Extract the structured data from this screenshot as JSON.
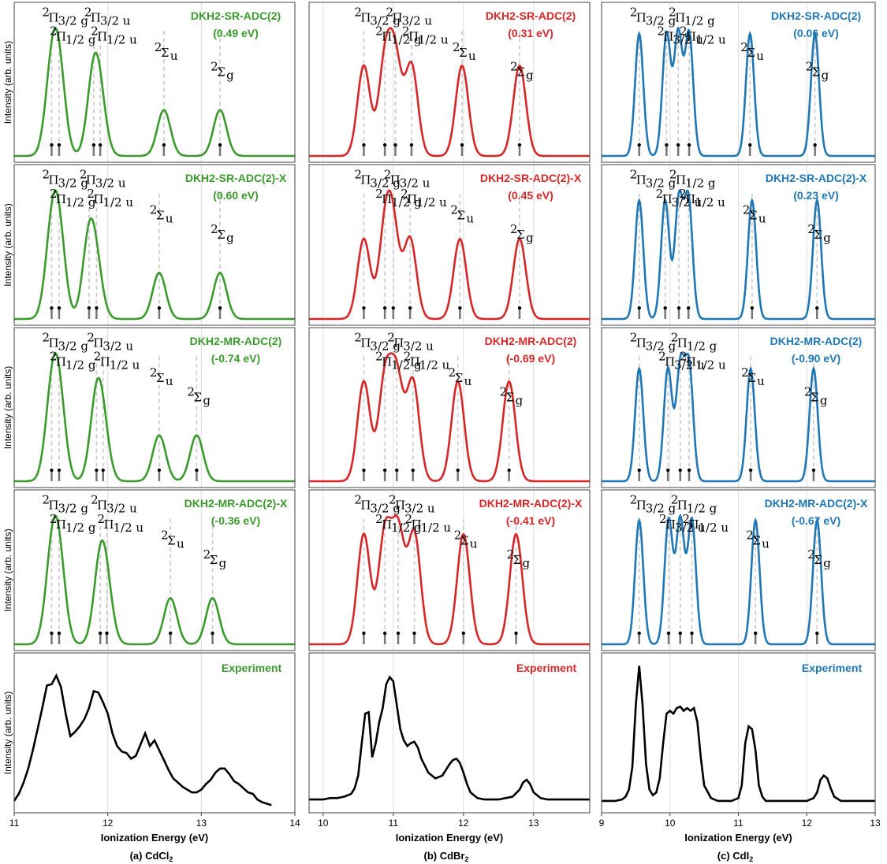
{
  "colors": {
    "cdcl2": "#3a9b2c",
    "cdbr2": "#d62728",
    "cdi2": "#1f77b4",
    "experiment": "#000000"
  },
  "chart_data": [
    {
      "type": "line",
      "panel": "a",
      "molecule": "CdCl2",
      "caption": "(a) CdCl",
      "caption_sub": "2",
      "xlabel": "Ionization Energy (eV)",
      "ylabel": "Intensity (arb. units)",
      "xlim": [
        11,
        14
      ],
      "xticks": [
        "11",
        "12",
        "13",
        "14"
      ],
      "methods": [
        {
          "name": "DKH2-SR-ADC(2)",
          "shift": "(0.49 eV)",
          "peaks": [
            11.4,
            11.48,
            11.85,
            11.92,
            12.6,
            13.2
          ],
          "heights": [
            1.0,
            1.0,
            1.0,
            0.53,
            0.61,
            0.61
          ],
          "labels": [
            {
              "base": "Π",
              "sup": "2",
              "sub": "3/2 g"
            },
            {
              "base": "Π",
              "sup": "2",
              "sub": "1/2 g"
            },
            {
              "base": "Π",
              "sup": "2",
              "sub": "3/2 u"
            },
            {
              "base": "Π",
              "sup": "2",
              "sub": "1/2 u"
            },
            {
              "base": "Σ",
              "sup": "2",
              "sub": "u"
            },
            {
              "base": "Σ",
              "sup": "2",
              "sub": "g"
            }
          ]
        },
        {
          "name": "DKH2-SR-ADC(2)-X",
          "shift": "(0.60 eV)",
          "peaks": [
            11.4,
            11.48,
            11.8,
            11.88,
            12.55,
            13.2
          ],
          "heights": [
            1.0,
            1.0,
            1.0,
            0.53,
            0.61,
            0.61
          ],
          "labels": [
            {
              "base": "Π",
              "sup": "2",
              "sub": "3/2 g"
            },
            {
              "base": "Π",
              "sup": "2",
              "sub": "1/2 g"
            },
            {
              "base": "Π",
              "sup": "2",
              "sub": "3/2 u"
            },
            {
              "base": "Π",
              "sup": "2",
              "sub": "1/2 u"
            },
            {
              "base": "Σ",
              "sup": "2",
              "sub": "u"
            },
            {
              "base": "Σ",
              "sup": "2",
              "sub": "g"
            }
          ]
        },
        {
          "name": "DKH2-MR-ADC(2)",
          "shift": "(-0.74 eV)",
          "peaks": [
            11.4,
            11.48,
            11.88,
            11.95,
            12.55,
            12.95
          ],
          "heights": [
            1.0,
            1.0,
            1.0,
            0.53,
            0.61,
            0.61
          ],
          "labels": [
            {
              "base": "Π",
              "sup": "2",
              "sub": "3/2 g"
            },
            {
              "base": "Π",
              "sup": "2",
              "sub": "1/2 g"
            },
            {
              "base": "Π",
              "sup": "2",
              "sub": "3/2 u"
            },
            {
              "base": "Π",
              "sup": "2",
              "sub": "1/2 u"
            },
            {
              "base": "Σ",
              "sup": "2",
              "sub": "u"
            },
            {
              "base": "Σ",
              "sup": "2",
              "sub": "g"
            }
          ]
        },
        {
          "name": "DKH2-MR-ADC(2)-X",
          "shift": "(-0.36 eV)",
          "peaks": [
            11.4,
            11.48,
            11.92,
            11.99,
            12.67,
            13.12
          ],
          "heights": [
            1.0,
            1.0,
            1.0,
            0.53,
            0.61,
            0.61
          ],
          "labels": [
            {
              "base": "Π",
              "sup": "2",
              "sub": "3/2 g"
            },
            {
              "base": "Π",
              "sup": "2",
              "sub": "1/2 g"
            },
            {
              "base": "Π",
              "sup": "2",
              "sub": "3/2 u"
            },
            {
              "base": "Π",
              "sup": "2",
              "sub": "1/2 u"
            },
            {
              "base": "Σ",
              "sup": "2",
              "sub": "u"
            },
            {
              "base": "Σ",
              "sup": "2",
              "sub": "g"
            }
          ]
        }
      ],
      "experiment": {
        "name": "Experiment",
        "x": [
          11.0,
          11.05,
          11.1,
          11.15,
          11.2,
          11.25,
          11.3,
          11.35,
          11.4,
          11.45,
          11.5,
          11.55,
          11.6,
          11.65,
          11.7,
          11.75,
          11.8,
          11.85,
          11.9,
          11.95,
          12.0,
          12.05,
          12.1,
          12.15,
          12.2,
          12.25,
          12.3,
          12.35,
          12.4,
          12.45,
          12.5,
          12.55,
          12.6,
          12.65,
          12.7,
          12.75,
          12.8,
          12.85,
          12.9,
          12.95,
          13.0,
          13.05,
          13.1,
          13.15,
          13.2,
          13.25,
          13.3,
          13.35,
          13.4,
          13.45,
          13.5,
          13.55,
          13.6,
          13.65,
          13.7,
          13.75
        ],
        "y": [
          0.04,
          0.09,
          0.17,
          0.27,
          0.4,
          0.55,
          0.7,
          0.86,
          0.87,
          0.93,
          0.85,
          0.66,
          0.5,
          0.53,
          0.57,
          0.62,
          0.7,
          0.82,
          0.81,
          0.74,
          0.66,
          0.52,
          0.43,
          0.39,
          0.38,
          0.34,
          0.36,
          0.44,
          0.52,
          0.43,
          0.47,
          0.4,
          0.33,
          0.26,
          0.2,
          0.17,
          0.14,
          0.12,
          0.1,
          0.1,
          0.12,
          0.16,
          0.19,
          0.24,
          0.27,
          0.27,
          0.23,
          0.18,
          0.16,
          0.13,
          0.1,
          0.09,
          0.05,
          0.03,
          0.02,
          0.01
        ]
      }
    },
    {
      "type": "line",
      "panel": "b",
      "molecule": "CdBr2",
      "caption": "(b) CdBr",
      "caption_sub": "2",
      "xlabel": "Ionization Energy (eV)",
      "ylabel": "",
      "xlim": [
        9.8,
        13.8
      ],
      "xticks": [
        "10",
        "11",
        "12",
        "13"
      ],
      "methods": [
        {
          "name": "DKH2-SR-ADC(2)",
          "shift": "(0.31 eV)",
          "peaks": [
            10.58,
            10.88,
            11.03,
            11.26,
            11.98,
            12.8
          ],
          "heights": [
            0.6,
            0.6,
            0.6,
            0.6,
            0.6,
            0.6
          ],
          "labels": [
            {
              "base": "Π",
              "sup": "2",
              "sub": "3/2 g"
            },
            {
              "base": "Π",
              "sup": "2",
              "sub": "1/2 g"
            },
            {
              "base": "Π",
              "sup": "2",
              "sub": "3/2 u"
            },
            {
              "base": "Π",
              "sup": "2",
              "sub": "1/2 u"
            },
            {
              "base": "Σ",
              "sup": "2",
              "sub": "u"
            },
            {
              "base": "Σ",
              "sup": "2",
              "sub": "g"
            }
          ]
        },
        {
          "name": "DKH2-SR-ADC(2)-X",
          "shift": "(0.45 eV)",
          "peaks": [
            10.58,
            10.88,
            11.0,
            11.24,
            11.95,
            12.8
          ],
          "heights": [
            0.6,
            0.6,
            0.6,
            0.6,
            0.6,
            0.6
          ],
          "labels": [
            {
              "base": "Π",
              "sup": "2",
              "sub": "3/2 g"
            },
            {
              "base": "Π",
              "sup": "2",
              "sub": "1/2 g"
            },
            {
              "base": "Π",
              "sup": "2",
              "sub": "3/2 u"
            },
            {
              "base": "Π",
              "sup": "2",
              "sub": "1/2 u"
            },
            {
              "base": "Σ",
              "sup": "2",
              "sub": "u"
            },
            {
              "base": "Σ",
              "sup": "2",
              "sub": "g"
            }
          ]
        },
        {
          "name": "DKH2-MR-ADC(2)",
          "shift": "(-0.69 eV)",
          "peaks": [
            10.58,
            10.88,
            11.05,
            11.28,
            11.92,
            12.65
          ],
          "heights": [
            0.6,
            0.6,
            0.6,
            0.6,
            0.6,
            0.6
          ],
          "labels": [
            {
              "base": "Π",
              "sup": "2",
              "sub": "3/2 g"
            },
            {
              "base": "Π",
              "sup": "2",
              "sub": "1/2 g"
            },
            {
              "base": "Π",
              "sup": "2",
              "sub": "3/2 u"
            },
            {
              "base": "Π",
              "sup": "2",
              "sub": "1/2 u"
            },
            {
              "base": "Σ",
              "sup": "2",
              "sub": "u"
            },
            {
              "base": "Σ",
              "sup": "2",
              "sub": "g"
            }
          ]
        },
        {
          "name": "DKH2-MR-ADC(2)-X",
          "shift": "(-0.41 eV)",
          "peaks": [
            10.58,
            10.88,
            11.07,
            11.3,
            12.0,
            12.75
          ],
          "heights": [
            0.6,
            0.6,
            0.6,
            0.6,
            0.6,
            0.6
          ],
          "labels": [
            {
              "base": "Π",
              "sup": "2",
              "sub": "3/2 g"
            },
            {
              "base": "Π",
              "sup": "2",
              "sub": "1/2 g"
            },
            {
              "base": "Π",
              "sup": "2",
              "sub": "3/2 u"
            },
            {
              "base": "Π",
              "sup": "2",
              "sub": "1/2 u"
            },
            {
              "base": "Σ",
              "sup": "2",
              "sub": "u"
            },
            {
              "base": "Σ",
              "sup": "2",
              "sub": "g"
            }
          ]
        }
      ],
      "experiment": {
        "name": "Experiment",
        "x": [
          9.8,
          9.9,
          10.0,
          10.1,
          10.2,
          10.3,
          10.4,
          10.45,
          10.5,
          10.55,
          10.6,
          10.65,
          10.7,
          10.75,
          10.8,
          10.85,
          10.9,
          10.95,
          11.0,
          11.05,
          11.1,
          11.15,
          11.2,
          11.25,
          11.3,
          11.35,
          11.4,
          11.5,
          11.6,
          11.7,
          11.8,
          11.85,
          11.9,
          11.95,
          12.0,
          12.05,
          12.1,
          12.2,
          12.3,
          12.4,
          12.5,
          12.6,
          12.7,
          12.8,
          12.85,
          12.9,
          12.95,
          13.0,
          13.1,
          13.2,
          13.3,
          13.4,
          13.5,
          13.6,
          13.7,
          13.8
        ],
        "y": [
          0.05,
          0.05,
          0.05,
          0.06,
          0.06,
          0.07,
          0.09,
          0.13,
          0.22,
          0.45,
          0.66,
          0.67,
          0.35,
          0.45,
          0.6,
          0.7,
          0.87,
          0.92,
          0.89,
          0.72,
          0.55,
          0.47,
          0.43,
          0.45,
          0.46,
          0.42,
          0.34,
          0.24,
          0.2,
          0.22,
          0.3,
          0.33,
          0.34,
          0.31,
          0.24,
          0.16,
          0.1,
          0.06,
          0.05,
          0.05,
          0.05,
          0.06,
          0.07,
          0.12,
          0.17,
          0.19,
          0.16,
          0.1,
          0.06,
          0.05,
          0.05,
          0.05,
          0.05,
          0.05,
          0.05,
          0.05
        ]
      }
    },
    {
      "type": "line",
      "panel": "c",
      "molecule": "CdI2",
      "caption": "(c) CdI",
      "caption_sub": "2",
      "xlabel": "Ionization Energy (eV)",
      "ylabel": "",
      "xlim": [
        9,
        13
      ],
      "xticks": [
        "9",
        "10",
        "11",
        "12",
        "13"
      ],
      "methods": [
        {
          "name": "DKH2-SR-ADC(2)",
          "shift": "(0.06 eV)",
          "peaks": [
            9.55,
            9.95,
            10.12,
            10.28,
            11.17,
            12.12
          ],
          "heights": [
            0.55,
            0.55,
            0.55,
            0.55,
            0.55,
            0.55
          ],
          "labels": [
            {
              "base": "Π",
              "sup": "2",
              "sub": "3/2 g"
            },
            {
              "base": "Π",
              "sup": "2",
              "sub": "3/2 u"
            },
            {
              "base": "Π",
              "sup": "2",
              "sub": "1/2 g"
            },
            {
              "base": "Π",
              "sup": "2",
              "sub": "1/2 u"
            },
            {
              "base": "Σ",
              "sup": "2",
              "sub": "u"
            },
            {
              "base": "Σ",
              "sup": "2",
              "sub": "g"
            }
          ]
        },
        {
          "name": "DKH2-SR-ADC(2)-X",
          "shift": "(0.23 eV)",
          "peaks": [
            9.55,
            9.93,
            10.13,
            10.27,
            11.2,
            12.15
          ],
          "heights": [
            0.55,
            0.55,
            0.55,
            0.55,
            0.55,
            0.55
          ],
          "labels": [
            {
              "base": "Π",
              "sup": "2",
              "sub": "3/2 g"
            },
            {
              "base": "Π",
              "sup": "2",
              "sub": "3/2 u"
            },
            {
              "base": "Π",
              "sup": "2",
              "sub": "1/2 g"
            },
            {
              "base": "Π",
              "sup": "2",
              "sub": "1/2 u"
            },
            {
              "base": "Σ",
              "sup": "2",
              "sub": "u"
            },
            {
              "base": "Σ",
              "sup": "2",
              "sub": "g"
            }
          ]
        },
        {
          "name": "DKH2-MR-ADC(2)",
          "shift": "(-0.90 eV)",
          "peaks": [
            9.55,
            9.97,
            10.15,
            10.28,
            11.18,
            12.1
          ],
          "heights": [
            0.55,
            0.55,
            0.55,
            0.55,
            0.55,
            0.55
          ],
          "labels": [
            {
              "base": "Π",
              "sup": "2",
              "sub": "3/2 g"
            },
            {
              "base": "Π",
              "sup": "2",
              "sub": "3/2 u"
            },
            {
              "base": "Π",
              "sup": "2",
              "sub": "1/2 g"
            },
            {
              "base": "Π",
              "sup": "2",
              "sub": "1/2 u"
            },
            {
              "base": "Σ",
              "sup": "2",
              "sub": "u"
            },
            {
              "base": "Σ",
              "sup": "2",
              "sub": "g"
            }
          ]
        },
        {
          "name": "DKH2-MR-ADC(2)-X",
          "shift": "(-0.67 eV)",
          "peaks": [
            9.55,
            9.98,
            10.15,
            10.32,
            11.25,
            12.15
          ],
          "heights": [
            0.55,
            0.55,
            0.55,
            0.55,
            0.55,
            0.55
          ],
          "labels": [
            {
              "base": "Π",
              "sup": "2",
              "sub": "3/2 g"
            },
            {
              "base": "Π",
              "sup": "2",
              "sub": "3/2 u"
            },
            {
              "base": "Π",
              "sup": "2",
              "sub": "1/2 g"
            },
            {
              "base": "Π",
              "sup": "2",
              "sub": "1/2 u"
            },
            {
              "base": "Σ",
              "sup": "2",
              "sub": "u"
            },
            {
              "base": "Σ",
              "sup": "2",
              "sub": "g"
            }
          ]
        }
      ],
      "experiment": {
        "name": "Experiment",
        "x": [
          9.0,
          9.1,
          9.2,
          9.3,
          9.35,
          9.4,
          9.45,
          9.5,
          9.55,
          9.6,
          9.65,
          9.7,
          9.75,
          9.8,
          9.85,
          9.9,
          9.95,
          10.0,
          10.05,
          10.1,
          10.15,
          10.2,
          10.25,
          10.3,
          10.35,
          10.4,
          10.45,
          10.5,
          10.6,
          10.7,
          10.8,
          10.9,
          11.0,
          11.05,
          11.1,
          11.15,
          11.2,
          11.25,
          11.3,
          11.35,
          11.4,
          11.5,
          11.6,
          11.7,
          11.8,
          11.9,
          12.0,
          12.1,
          12.15,
          12.2,
          12.25,
          12.3,
          12.35,
          12.4,
          12.5,
          12.6,
          12.8,
          13.0
        ],
        "y": [
          0.04,
          0.04,
          0.04,
          0.05,
          0.07,
          0.12,
          0.28,
          0.72,
          1.0,
          0.72,
          0.3,
          0.12,
          0.08,
          0.1,
          0.2,
          0.45,
          0.66,
          0.68,
          0.66,
          0.7,
          0.71,
          0.68,
          0.7,
          0.68,
          0.7,
          0.6,
          0.35,
          0.15,
          0.06,
          0.04,
          0.04,
          0.04,
          0.06,
          0.15,
          0.45,
          0.57,
          0.55,
          0.4,
          0.15,
          0.07,
          0.04,
          0.04,
          0.04,
          0.04,
          0.04,
          0.04,
          0.04,
          0.06,
          0.1,
          0.19,
          0.22,
          0.2,
          0.13,
          0.07,
          0.04,
          0.04,
          0.04,
          0.04
        ]
      }
    }
  ]
}
